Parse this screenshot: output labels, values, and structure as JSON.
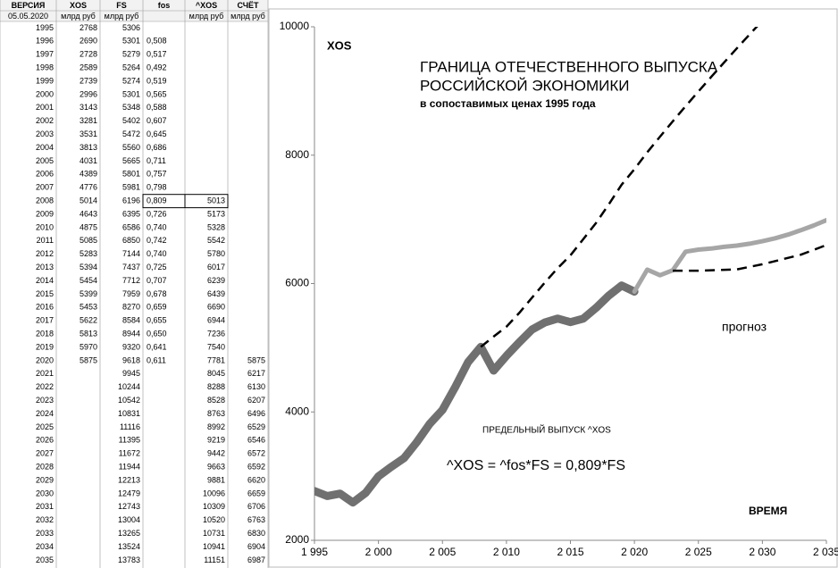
{
  "table": {
    "header": [
      "ВЕРСИЯ",
      "XOS",
      "FS",
      "fos",
      "^XOS",
      "СЧЁТ"
    ],
    "units": [
      "05.05.2020",
      "млрд руб",
      "млрд руб",
      null,
      "млрд руб",
      "млрд руб"
    ],
    "rows": [
      [
        "1995",
        "2768",
        "5306",
        null,
        null,
        null
      ],
      [
        "1996",
        "2690",
        "5301",
        "0,508",
        null,
        null
      ],
      [
        "1997",
        "2728",
        "5279",
        "0,517",
        null,
        null
      ],
      [
        "1998",
        "2589",
        "5264",
        "0,492",
        null,
        null
      ],
      [
        "1999",
        "2739",
        "5274",
        "0,519",
        null,
        null
      ],
      [
        "2000",
        "2996",
        "5301",
        "0,565",
        null,
        null
      ],
      [
        "2001",
        "3143",
        "5348",
        "0,588",
        null,
        null
      ],
      [
        "2002",
        "3281",
        "5402",
        "0,607",
        null,
        null
      ],
      [
        "2003",
        "3531",
        "5472",
        "0,645",
        null,
        null
      ],
      [
        "2004",
        "3813",
        "5560",
        "0,686",
        null,
        null
      ],
      [
        "2005",
        "4031",
        "5665",
        "0,711",
        null,
        null
      ],
      [
        "2006",
        "4389",
        "5801",
        "0,757",
        null,
        null
      ],
      [
        "2007",
        "4776",
        "5981",
        "0,798",
        null,
        null
      ],
      [
        "2008",
        "5014",
        "6196",
        "0,809",
        "5013",
        null
      ],
      [
        "2009",
        "4643",
        "6395",
        "0,726",
        "5173",
        null
      ],
      [
        "2010",
        "4875",
        "6586",
        "0,740",
        "5328",
        null
      ],
      [
        "2011",
        "5085",
        "6850",
        "0,742",
        "5542",
        null
      ],
      [
        "2012",
        "5283",
        "7144",
        "0,740",
        "5780",
        null
      ],
      [
        "2013",
        "5394",
        "7437",
        "0,725",
        "6017",
        null
      ],
      [
        "2014",
        "5454",
        "7712",
        "0,707",
        "6239",
        null
      ],
      [
        "2015",
        "5399",
        "7959",
        "0,678",
        "6439",
        null
      ],
      [
        "2016",
        "5453",
        "8270",
        "0,659",
        "6690",
        null
      ],
      [
        "2017",
        "5622",
        "8584",
        "0,655",
        "6944",
        null
      ],
      [
        "2018",
        "5813",
        "8944",
        "0,650",
        "7236",
        null
      ],
      [
        "2019",
        "5970",
        "9320",
        "0,641",
        "7540",
        null
      ],
      [
        "2020",
        "5875",
        "9618",
        "0,611",
        "7781",
        "5875"
      ],
      [
        "2021",
        null,
        "9945",
        null,
        "8045",
        "6217"
      ],
      [
        "2022",
        null,
        "10244",
        null,
        "8288",
        "6130"
      ],
      [
        "2023",
        null,
        "10542",
        null,
        "8528",
        "6207"
      ],
      [
        "2024",
        null,
        "10831",
        null,
        "8763",
        "6496"
      ],
      [
        "2025",
        null,
        "11116",
        null,
        "8992",
        "6529"
      ],
      [
        "2026",
        null,
        "11395",
        null,
        "9219",
        "6546"
      ],
      [
        "2027",
        null,
        "11672",
        null,
        "9442",
        "6572"
      ],
      [
        "2028",
        null,
        "11944",
        null,
        "9663",
        "6592"
      ],
      [
        "2029",
        null,
        "12213",
        null,
        "9881",
        "6620"
      ],
      [
        "2030",
        null,
        "12479",
        null,
        "10096",
        "6659"
      ],
      [
        "2031",
        null,
        "12743",
        null,
        "10309",
        "6706"
      ],
      [
        "2032",
        null,
        "13004",
        null,
        "10520",
        "6763"
      ],
      [
        "2033",
        null,
        "13265",
        null,
        "10731",
        "6830"
      ],
      [
        "2034",
        null,
        "13524",
        null,
        "10941",
        "6904"
      ],
      [
        "2035",
        null,
        "13783",
        null,
        "11151",
        "6987"
      ]
    ]
  },
  "chart_data": {
    "type": "line",
    "y_label": "XOS",
    "title": [
      "ГРАНИЦА ОТЕЧЕСТВЕННОГО ВЫПУСКА",
      "РОССИЙСКОЙ ЭКОНОМИКИ"
    ],
    "subtitle": "в сопоставимых ценах 1995 года",
    "x_label": "ВРЕМЯ",
    "annotations": [
      "прогноз",
      "ПРЕДЕЛЬНЫЙ ВЫПУСК ^XOS",
      "^XOS = ^fos*FS = 0,809*FS"
    ],
    "xlim": [
      1995,
      2035
    ],
    "xticks": [
      {
        "value": 1995,
        "label": "1 995"
      },
      {
        "value": 2000,
        "label": "2 000"
      },
      {
        "value": 2005,
        "label": "2 005"
      },
      {
        "value": 2010,
        "label": "2 010"
      },
      {
        "value": 2015,
        "label": "2 015"
      },
      {
        "value": 2020,
        "label": "2 020"
      },
      {
        "value": 2025,
        "label": "2 025"
      },
      {
        "value": 2030,
        "label": "2 030"
      },
      {
        "value": 2035,
        "label": "2 035"
      }
    ],
    "ylim": [
      2000,
      10000
    ],
    "yticks": [
      2000,
      4000,
      6000,
      8000,
      10000
    ],
    "series": [
      {
        "color": "#707070",
        "width": 9,
        "dashed": false,
        "x": [
          1995,
          1996,
          1997,
          1998,
          1999,
          2000,
          2001,
          2002,
          2003,
          2004,
          2005,
          2006,
          2007,
          2008,
          2009,
          2010,
          2011,
          2012,
          2013,
          2014,
          2015,
          2016,
          2017,
          2018,
          2019,
          2020
        ],
        "values": [
          2768,
          2690,
          2728,
          2589,
          2739,
          2996,
          3143,
          3281,
          3531,
          3813,
          4031,
          4389,
          4776,
          5014,
          4643,
          4875,
          5085,
          5283,
          5394,
          5454,
          5399,
          5453,
          5622,
          5813,
          5970,
          5875
        ]
      },
      {
        "color": "#a6a6a6",
        "width": 5,
        "dashed": false,
        "x": [
          2020,
          2021,
          2022,
          2023,
          2024,
          2025,
          2026,
          2027,
          2028,
          2029,
          2030,
          2031,
          2032,
          2033,
          2034,
          2035
        ],
        "values": [
          5875,
          6217,
          6130,
          6207,
          6496,
          6529,
          6546,
          6572,
          6592,
          6620,
          6659,
          6706,
          6763,
          6830,
          6904,
          6987
        ]
      },
      {
        "color": "#000000",
        "width": 2.5,
        "dashed": true,
        "x": [
          2008,
          2009,
          2010,
          2011,
          2012,
          2013,
          2014,
          2015,
          2016,
          2017,
          2018,
          2019,
          2020,
          2021,
          2022,
          2023,
          2024,
          2025,
          2026,
          2027,
          2028,
          2029,
          2030,
          2031,
          2032,
          2033,
          2034,
          2035
        ],
        "values": [
          5013,
          5173,
          5328,
          5542,
          5780,
          6017,
          6239,
          6439,
          6690,
          6944,
          7236,
          7540,
          7781,
          8045,
          8288,
          8528,
          8763,
          8992,
          9219,
          9442,
          9663,
          9881,
          10096,
          10309,
          10520,
          10731,
          10941,
          11151
        ]
      },
      {
        "color": "#000000",
        "width": 2.5,
        "dashed": true,
        "x": [
          2023,
          2025,
          2028,
          2030,
          2033,
          2035
        ],
        "values": [
          6200,
          6200,
          6220,
          6300,
          6450,
          6600
        ]
      }
    ]
  }
}
